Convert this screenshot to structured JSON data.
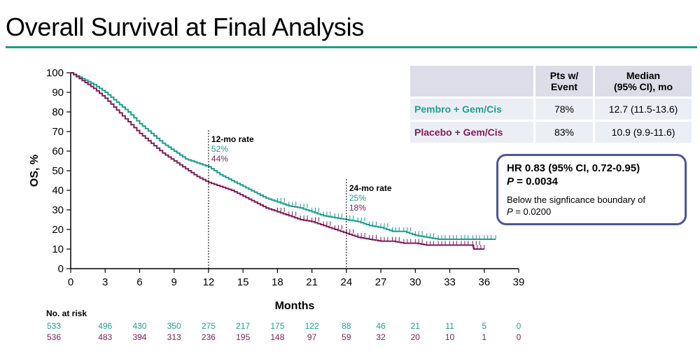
{
  "page": {
    "title": "Overall Survival at Final Analysis"
  },
  "colors": {
    "pembro": "#1f9e8e",
    "placebo": "#7b1f5a",
    "accent": "#1f9e8e",
    "box": "#4d5698"
  },
  "table": {
    "headers": [
      "",
      "Pts w/\nEvent",
      "Median\n(95% CI), mo"
    ],
    "header_pts_line1": "Pts w/",
    "header_pts_line2": "Event",
    "header_median_line1": "Median",
    "header_median_line2": "(95% CI), mo",
    "rows": [
      {
        "label": "Pembro + Gem/Cis",
        "pts": "78%",
        "median": "12.7 (11.5-13.6)"
      },
      {
        "label": "Placebo + Gem/Cis",
        "pts": "83%",
        "median": "10.9 (9.9-11.6)"
      }
    ]
  },
  "hr_box": {
    "line1": "HR 0.83 (95% CI, 0.72-0.95)",
    "p_label": "P",
    "p_value": " = 0.0034",
    "line3": "Below the signficance boundary of",
    "p2_label": "P",
    "p2_value": " = 0.0200"
  },
  "chart_data": {
    "type": "line",
    "title": "Overall Survival at Final Analysis",
    "xlabel": "Months",
    "ylabel": "OS, %",
    "xlim": [
      0,
      39
    ],
    "ylim": [
      0,
      100
    ],
    "x_ticks": [
      0,
      3,
      6,
      9,
      12,
      15,
      18,
      21,
      24,
      27,
      30,
      33,
      36,
      39
    ],
    "y_ticks": [
      0,
      10,
      20,
      30,
      40,
      50,
      60,
      70,
      80,
      90,
      100
    ],
    "series": [
      {
        "name": "Pembro + Gem/Cis",
        "x": [
          0,
          1,
          2,
          3,
          4,
          5,
          6,
          7,
          8,
          9,
          10,
          11,
          12,
          13,
          14,
          15,
          16,
          17,
          18,
          19,
          20,
          21,
          22,
          23,
          24,
          25,
          26,
          27,
          28,
          29,
          30,
          31,
          32,
          33,
          34,
          35,
          36,
          37
        ],
        "y": [
          100,
          97,
          94,
          90,
          85,
          80,
          74,
          69,
          64,
          60,
          56,
          54,
          52,
          48,
          45,
          42,
          39,
          36,
          34,
          32,
          31,
          29,
          27,
          26,
          25,
          24,
          22,
          21,
          19,
          19,
          17,
          16,
          15,
          15,
          15,
          15,
          15,
          15
        ]
      },
      {
        "name": "Placebo + Gem/Cis",
        "x": [
          0,
          1,
          2,
          3,
          4,
          5,
          6,
          7,
          8,
          9,
          10,
          11,
          12,
          13,
          14,
          15,
          16,
          17,
          18,
          19,
          20,
          21,
          22,
          23,
          24,
          25,
          26,
          27,
          28,
          29,
          30,
          31,
          32,
          33,
          34,
          35,
          35.1,
          36
        ],
        "y": [
          100,
          96,
          92,
          87,
          81,
          75,
          69,
          64,
          59,
          55,
          51,
          47,
          44,
          42,
          40,
          37,
          34,
          31,
          29,
          27,
          25,
          24,
          22,
          20,
          18,
          16,
          15,
          14,
          14,
          13,
          13,
          12,
          12,
          12,
          12,
          12,
          10,
          10
        ]
      }
    ],
    "annotations": [
      {
        "x": 12,
        "label": "12-mo rate",
        "pembro": "52%",
        "placebo": "44%"
      },
      {
        "x": 24,
        "label": "24-mo rate",
        "pembro": "25%",
        "placebo": "18%"
      }
    ],
    "at_risk": {
      "label": "No. at risk",
      "pembro": [
        "533",
        "496",
        "430",
        "350",
        "275",
        "217",
        "175",
        "122",
        "88",
        "46",
        "21",
        "11",
        "5",
        "0"
      ],
      "placebo": [
        "536",
        "483",
        "394",
        "313",
        "236",
        "195",
        "148",
        "97",
        "59",
        "32",
        "20",
        "10",
        "1",
        "0"
      ]
    }
  }
}
